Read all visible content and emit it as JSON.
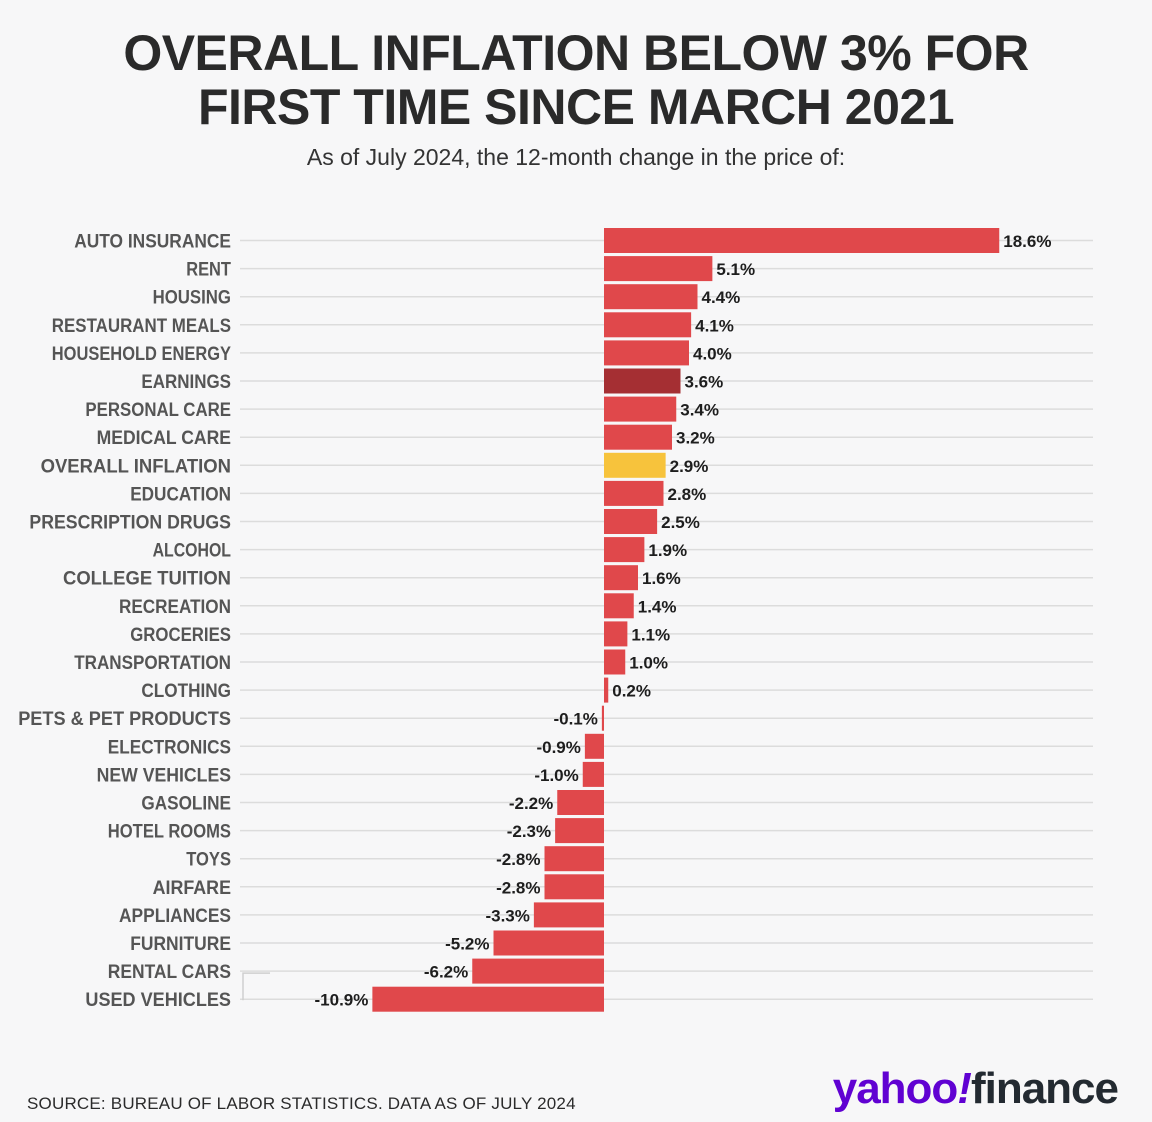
{
  "title_line1": "OVERALL INFLATION BELOW 3% FOR",
  "title_line2": "FIRST TIME SINCE MARCH 2021",
  "subtitle": "As of July 2024, the 12-month change in the price of:",
  "source": "SOURCE: BUREAU OF LABOR STATISTICS. DATA AS OF JULY 2024",
  "logo": {
    "yahoo": "yahoo",
    "bang": "!",
    "finance": "finance"
  },
  "colors": {
    "default": "#e0484b",
    "earnings": "#a52f33",
    "overall_inflation": "#f7c33c",
    "gridline": "#dcdcdc",
    "label": "#555555"
  },
  "chart_data": {
    "type": "bar",
    "orientation": "horizontal",
    "unit": "%",
    "categories": [
      "AUTO INSURANCE",
      "RENT",
      "HOUSING",
      "RESTAURANT MEALS",
      "HOUSEHOLD ENERGY",
      "EARNINGS",
      "PERSONAL CARE",
      "MEDICAL CARE",
      "OVERALL INFLATION",
      "EDUCATION",
      "PRESCRIPTION DRUGS",
      "ALCOHOL",
      "COLLEGE TUITION",
      "RECREATION",
      "GROCERIES",
      "TRANSPORTATION",
      "CLOTHING",
      "PETS & PET PRODUCTS",
      "ELECTRONICS",
      "NEW VEHICLES",
      "GASOLINE",
      "HOTEL ROOMS",
      "TOYS",
      "AIRFARE",
      "APPLIANCES",
      "FURNITURE",
      "RENTAL CARS",
      "USED VEHICLES"
    ],
    "values": [
      18.6,
      5.1,
      4.4,
      4.1,
      4.0,
      3.6,
      3.4,
      3.2,
      2.9,
      2.8,
      2.5,
      1.9,
      1.6,
      1.4,
      1.1,
      1.0,
      0.2,
      -0.1,
      -0.9,
      -1.0,
      -2.2,
      -2.3,
      -2.8,
      -2.8,
      -3.3,
      -5.2,
      -6.2,
      -10.9
    ],
    "value_labels": [
      "18.6%",
      "5.1%",
      "4.4%",
      "4.1%",
      "4.0%",
      "3.6%",
      "3.4%",
      "3.2%",
      "2.9%",
      "2.8%",
      "2.5%",
      "1.9%",
      "1.6%",
      "1.4%",
      "1.1%",
      "1.0%",
      "0.2%",
      "-0.1%",
      "-0.9%",
      "-1.0%",
      "-2.2%",
      "-2.3%",
      "-2.8%",
      "-2.8%",
      "-3.3%",
      "-5.2%",
      "-6.2%",
      "-10.9%"
    ],
    "highlight": {
      "EARNINGS": "earnings",
      "OVERALL INFLATION": "overall_inflation"
    },
    "xlim": [
      -10.9,
      18.6
    ],
    "grid": true,
    "legend": "none"
  }
}
